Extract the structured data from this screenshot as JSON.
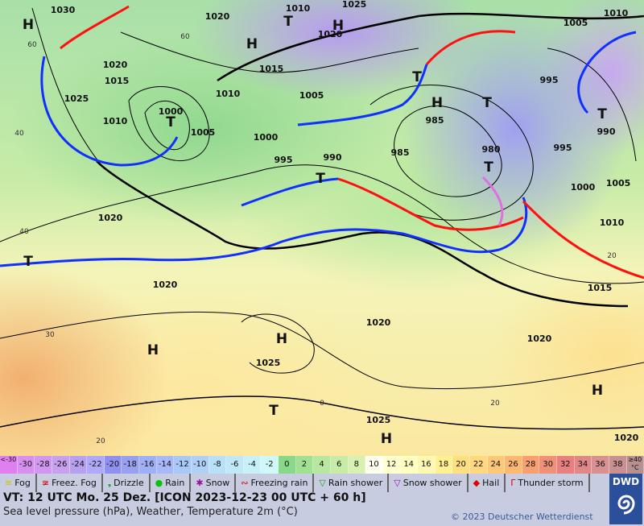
{
  "map": {
    "pressure_labels": [
      "1030",
      "1020",
      "1010",
      "1025",
      "1020",
      "1010",
      "1005",
      "1020",
      "1015",
      "1025",
      "1010",
      "1000",
      "1005",
      "1010",
      "1015",
      "1005",
      "1000",
      "995",
      "990",
      "985",
      "985",
      "980",
      "995",
      "990",
      "995",
      "1000",
      "1005",
      "1010",
      "1015",
      "1020",
      "1020",
      "1020",
      "1020",
      "1025",
      "1025",
      "1020"
    ],
    "centers": [
      "H",
      "H",
      "T",
      "H",
      "T",
      "T",
      "H",
      "T",
      "T",
      "T",
      "T",
      "T",
      "H",
      "H",
      "T",
      "H",
      "H"
    ],
    "temperature_labels": [
      "60",
      "40",
      "40",
      "30",
      "20",
      "0",
      "20",
      "60",
      "20"
    ],
    "colors": {
      "cold_front": "#1030ff",
      "warm_front": "#ff1010",
      "occlusion": "#e070e0",
      "isobar": "#000000"
    }
  },
  "scale": {
    "cells": [
      "<-30",
      "-30",
      "-28",
      "-26",
      "-24",
      "-22",
      "-20",
      "-18",
      "-16",
      "-14",
      "-12",
      "-10",
      "-8",
      "-6",
      "-4",
      "-2",
      "0",
      "2",
      "4",
      "6",
      "8",
      "10",
      "12",
      "14",
      "16",
      "18",
      "20",
      "22",
      "24",
      "26",
      "28",
      "30",
      "32",
      "34",
      "36",
      "38",
      "≥40 °C"
    ],
    "colors": [
      "#e080f0",
      "#d890f0",
      "#d098f0",
      "#c8a0f0",
      "#b8a0f0",
      "#b0a8f8",
      "#9090f0",
      "#98a0f0",
      "#a0b0f8",
      "#a8b8f8",
      "#a8c8f8",
      "#b0d0f8",
      "#b8e0f8",
      "#c0e8f8",
      "#c8f0f8",
      "#d0f8f8",
      "#88d888",
      "#a0e090",
      "#b8e8a0",
      "#c8eca8",
      "#d8f0b0",
      "#fffff0",
      "#ffffd0",
      "#ffffc0",
      "#fff8b0",
      "#fff090",
      "#ffe080",
      "#ffd880",
      "#ffc878",
      "#ffb870",
      "#f8a070",
      "#f09078",
      "#e88080",
      "#e08888",
      "#d89090",
      "#c89090",
      "#b89090"
    ]
  },
  "legend": [
    {
      "icon": "fog-icon",
      "glyph": "≡",
      "color": "#d0c000",
      "label": "Fog"
    },
    {
      "icon": "freezing-fog-icon",
      "glyph": "≆",
      "color": "#e00000",
      "label": "Freez. Fog"
    },
    {
      "icon": "drizzle-icon",
      "glyph": "❟",
      "color": "#10a010",
      "label": "Drizzle"
    },
    {
      "icon": "rain-icon",
      "glyph": "●",
      "color": "#10c010",
      "label": "Rain"
    },
    {
      "icon": "snow-icon",
      "glyph": "✱",
      "color": "#a010a0",
      "label": "Snow"
    },
    {
      "icon": "freezing-rain-icon",
      "glyph": "∾",
      "color": "#e00000",
      "label": "Freezing rain"
    },
    {
      "icon": "rain-shower-icon",
      "glyph": "▽",
      "color": "#10a010",
      "label": "Rain shower"
    },
    {
      "icon": "snow-shower-icon",
      "glyph": "▽",
      "color": "#a010a0",
      "label": "Snow shower"
    },
    {
      "icon": "hail-icon",
      "glyph": "◆",
      "color": "#e00000",
      "label": "Hail"
    },
    {
      "icon": "thunderstorm-icon",
      "glyph": "Γ",
      "color": "#e00000",
      "label": "Thunder storm"
    }
  ],
  "footer": {
    "vt": "VT: 12 UTC Mo.  25 Dez. [ICON 2023-12-23  00 UTC + 60 h]",
    "subtitle": "Sea level pressure (hPa), Weather, Temperature 2m (°C)",
    "copyright": "© 2023 Deutscher Wetterdienst",
    "logo": "DWD"
  }
}
